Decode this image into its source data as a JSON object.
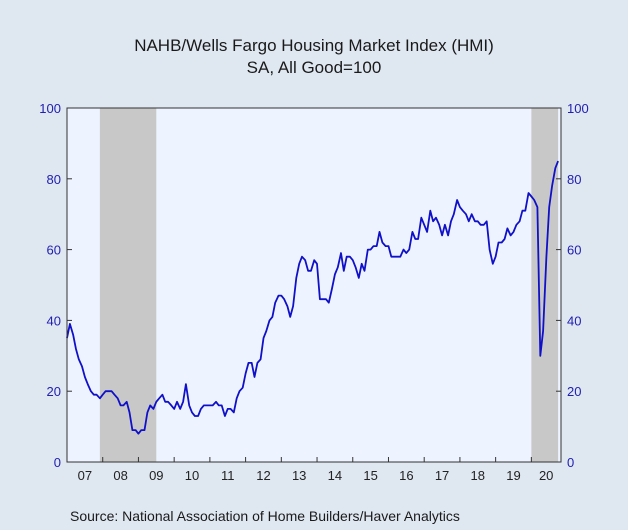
{
  "chart_data": {
    "type": "line",
    "title": "NAHB/Wells Fargo Housing Market Index (HMI)",
    "subtitle": "SA, All Good=100",
    "source": "Source:  National Association of Home Builders/Haver Analytics",
    "ylim": [
      0,
      100
    ],
    "y_ticks": [
      "0",
      "20",
      "40",
      "60",
      "80",
      "100"
    ],
    "x_tick_labels": [
      "07",
      "08",
      "09",
      "10",
      "11",
      "12",
      "13",
      "14",
      "15",
      "16",
      "17",
      "18",
      "19",
      "20"
    ],
    "xlim": [
      2007.0,
      2020.83
    ],
    "grid": false,
    "colors": {
      "line": "#1010c8",
      "recession": "#c8c8c8",
      "plot_bg": "#eef4ff",
      "axis_text": "#1f1fb0"
    },
    "recessions": [
      [
        2007.92,
        2009.5
      ],
      [
        2020.0,
        2020.75
      ]
    ],
    "series": [
      {
        "x": [
          2007.0,
          2007.08,
          2007.17,
          2007.25,
          2007.33,
          2007.42,
          2007.5,
          2007.58,
          2007.67,
          2007.75,
          2007.83,
          2007.92,
          2008.0,
          2008.08,
          2008.17,
          2008.25,
          2008.33,
          2008.42,
          2008.5,
          2008.58,
          2008.67,
          2008.75,
          2008.83,
          2008.92,
          2009.0,
          2009.08,
          2009.17,
          2009.25,
          2009.33,
          2009.42,
          2009.5,
          2009.58,
          2009.67,
          2009.75,
          2009.83,
          2009.92,
          2010.0,
          2010.08,
          2010.17,
          2010.25,
          2010.33,
          2010.42,
          2010.5,
          2010.58,
          2010.67,
          2010.75,
          2010.83,
          2010.92,
          2011.0,
          2011.08,
          2011.17,
          2011.25,
          2011.33,
          2011.42,
          2011.5,
          2011.58,
          2011.67,
          2011.75,
          2011.83,
          2011.92,
          2012.0,
          2012.08,
          2012.17,
          2012.25,
          2012.33,
          2012.42,
          2012.5,
          2012.58,
          2012.67,
          2012.75,
          2012.83,
          2012.92,
          2013.0,
          2013.08,
          2013.17,
          2013.25,
          2013.33,
          2013.42,
          2013.5,
          2013.58,
          2013.67,
          2013.75,
          2013.83,
          2013.92,
          2014.0,
          2014.08,
          2014.17,
          2014.25,
          2014.33,
          2014.42,
          2014.5,
          2014.58,
          2014.67,
          2014.75,
          2014.83,
          2014.92,
          2015.0,
          2015.08,
          2015.17,
          2015.25,
          2015.33,
          2015.42,
          2015.5,
          2015.58,
          2015.67,
          2015.75,
          2015.83,
          2015.92,
          2016.0,
          2016.08,
          2016.17,
          2016.25,
          2016.33,
          2016.42,
          2016.5,
          2016.58,
          2016.67,
          2016.75,
          2016.83,
          2016.92,
          2017.0,
          2017.08,
          2017.17,
          2017.25,
          2017.33,
          2017.42,
          2017.5,
          2017.58,
          2017.67,
          2017.75,
          2017.83,
          2017.92,
          2018.0,
          2018.08,
          2018.17,
          2018.25,
          2018.33,
          2018.42,
          2018.5,
          2018.58,
          2018.67,
          2018.75,
          2018.83,
          2018.92,
          2019.0,
          2019.08,
          2019.17,
          2019.25,
          2019.33,
          2019.42,
          2019.5,
          2019.58,
          2019.67,
          2019.75,
          2019.83,
          2019.92,
          2020.0,
          2020.08,
          2020.17,
          2020.25,
          2020.33,
          2020.42,
          2020.5,
          2020.58,
          2020.67,
          2020.75
        ],
        "values": [
          35,
          39,
          36,
          32,
          29,
          27,
          24,
          22,
          20,
          19,
          19,
          18,
          19,
          20,
          20,
          20,
          19,
          18,
          16,
          16,
          17,
          14,
          9,
          9,
          8,
          9,
          9,
          14,
          16,
          15,
          17,
          18,
          19,
          17,
          17,
          16,
          15,
          17,
          15,
          17,
          22,
          16,
          14,
          13,
          13,
          15,
          16,
          16,
          16,
          16,
          17,
          16,
          16,
          13,
          15,
          15,
          14,
          18,
          20,
          21,
          25,
          28,
          28,
          24,
          28,
          29,
          35,
          37,
          40,
          41,
          45,
          47,
          47,
          46,
          44,
          41,
          44,
          52,
          56,
          58,
          57,
          54,
          54,
          57,
          56,
          46,
          46,
          46,
          45,
          49,
          53,
          55,
          59,
          54,
          58,
          58,
          57,
          55,
          52,
          56,
          54,
          60,
          60,
          61,
          61,
          65,
          62,
          61,
          61,
          58,
          58,
          58,
          58,
          60,
          59,
          60,
          65,
          63,
          63,
          69,
          67,
          65,
          71,
          68,
          69,
          67,
          64,
          67,
          64,
          68,
          70,
          74,
          72,
          71,
          70,
          68,
          70,
          68,
          68,
          67,
          67,
          68,
          60,
          56,
          58,
          62,
          62,
          63,
          66,
          64,
          65,
          67,
          68,
          71,
          71,
          76,
          75,
          74,
          72,
          30,
          37,
          58,
          72,
          78,
          83,
          85
        ]
      }
    ]
  }
}
